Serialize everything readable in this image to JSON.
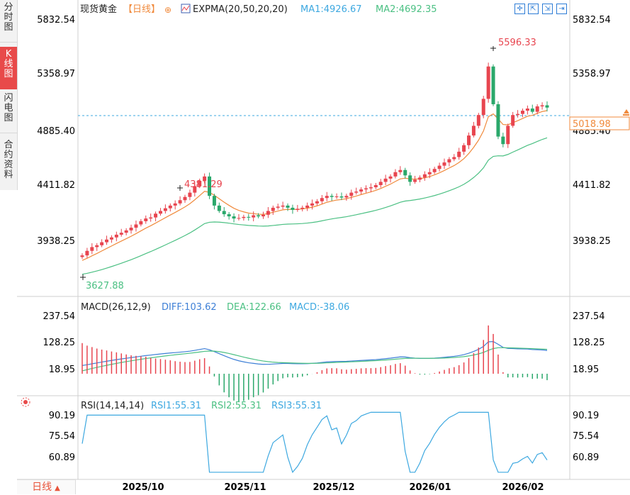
{
  "side_tabs": [
    {
      "label": "分时图",
      "active": false
    },
    {
      "label": "K线图",
      "active": true
    },
    {
      "label": "闪电图",
      "active": false
    },
    {
      "label": "合约资料",
      "active": false
    }
  ],
  "header": {
    "instrument": "现货黄金",
    "period": "【日线】",
    "period_icon": "⊕",
    "indicator_name": "EXPMA(20,50,20,20)",
    "ma1": "MA1:4926.67",
    "ma2": "MA2:4692.35"
  },
  "toolbar_icons": [
    "crosshair-icon",
    "zoom-in-icon",
    "zoom-out-icon",
    "next-icon"
  ],
  "price_axis": {
    "ticks": [
      "5832.54",
      "5358.97",
      "4885.40",
      "4411.82",
      "3938.25"
    ],
    "current_price": "5018.98",
    "high_label": "5596.33",
    "mid_high_label": "4381.29",
    "low_label": "3627.88"
  },
  "macd": {
    "title": "MACD(26,12,9)",
    "diff": "DIFF:103.62",
    "dea": "DEA:122.66",
    "macd": "MACD:-38.06",
    "ticks": [
      "237.54",
      "128.25",
      "18.95"
    ]
  },
  "rsi": {
    "title": "RSI(14,14,14)",
    "rsi1": "RSI1:55.31",
    "rsi2": "RSI2:55.31",
    "rsi3": "RSI3:55.31",
    "ticks": [
      "90.19",
      "75.54",
      "60.89"
    ]
  },
  "date_axis": [
    "2025/10",
    "2025/11",
    "2025/12",
    "2026/01",
    "2026/02"
  ],
  "period_button": {
    "label": "日线",
    "arrow": "▲"
  },
  "colors": {
    "up": "#e8454f",
    "down": "#2aa86b",
    "ema_fast": "#f08a3c",
    "ema_slow": "#4bc083",
    "diff": "#3d7fd6",
    "dea": "#4bc083",
    "rsi": "#3da8e0",
    "accent": "#f08a3c"
  },
  "chart_data": [
    {
      "type": "candlestick",
      "title": "现货黄金 日线",
      "y_range": [
        3560,
        5900
      ],
      "price_ticks": [
        5832.54,
        5358.97,
        4885.4,
        4411.82,
        3938.25
      ],
      "current_price": 5018.98,
      "annotations": [
        {
          "label": "5596.33",
          "value": 5596.33
        },
        {
          "label": "4381.29",
          "value": 4381.29
        },
        {
          "label": "3627.88",
          "value": 3627.88
        }
      ],
      "x_ticks": [
        "2025/10",
        "2025/11",
        "2025/12",
        "2026/01",
        "2026/02"
      ],
      "close_series_approx": [
        3648,
        3690,
        3725,
        3742,
        3770,
        3795,
        3815,
        3840,
        3858,
        3880,
        3905,
        3935,
        3965,
        3990,
        4000,
        4035,
        4060,
        4085,
        4110,
        4130,
        4160,
        4190,
        4230,
        4290,
        4340,
        4380,
        4200,
        4110,
        4060,
        4030,
        4010,
        3990,
        3995,
        4005,
        4000,
        4020,
        4010,
        4025,
        4060,
        4090,
        4100,
        4110,
        4090,
        4070,
        4080,
        4090,
        4110,
        4130,
        4150,
        4180,
        4200,
        4190,
        4195,
        4185,
        4200,
        4230,
        4240,
        4260,
        4270,
        4280,
        4300,
        4330,
        4360,
        4380,
        4420,
        4440,
        4390,
        4330,
        4350,
        4370,
        4400,
        4420,
        4450,
        4480,
        4510,
        4540,
        4560,
        4610,
        4670,
        4760,
        4850,
        4950,
        5100,
        5400,
        5050,
        4750,
        4680,
        4850,
        4950,
        4960,
        4990,
        5010,
        4980,
        5030,
        5040,
        5018.98
      ],
      "series": [
        {
          "name": "MA1",
          "last": 4926.67
        },
        {
          "name": "MA2",
          "last": 4692.35
        }
      ]
    },
    {
      "type": "line",
      "title": "MACD(26,12,9)",
      "y_ticks": [
        237.54,
        128.25,
        18.95
      ],
      "series": [
        {
          "name": "DIFF",
          "last": 103.62
        },
        {
          "name": "DEA",
          "last": 122.66
        },
        {
          "name": "MACD",
          "last": -38.06
        }
      ]
    },
    {
      "type": "line",
      "title": "RSI(14,14,14)",
      "y_ticks": [
        90.19,
        75.54,
        60.89
      ],
      "series": [
        {
          "name": "RSI1",
          "last": 55.31
        },
        {
          "name": "RSI2",
          "last": 55.31
        },
        {
          "name": "RSI3",
          "last": 55.31
        }
      ]
    }
  ]
}
